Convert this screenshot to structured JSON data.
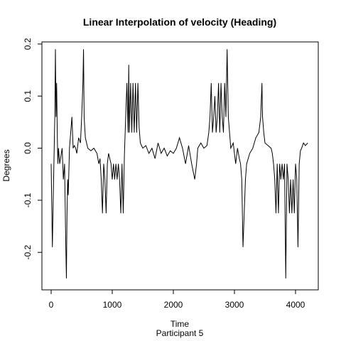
{
  "chart_data": {
    "type": "line",
    "title": "Linear Interpolation of velocity (Heading)",
    "x_label": "Time",
    "subtitle": "Participant  5",
    "y_label": "Degrees",
    "xlim": [
      -151,
      4372
    ],
    "ylim": [
      -0.272,
      0.204
    ],
    "xticks": [
      0,
      1000,
      2000,
      3000,
      4000
    ],
    "yticks": [
      -0.2,
      -0.1,
      {
        "value": 0,
        "label": "0.0"
      },
      0.1,
      0.2
    ],
    "x": [
      0,
      20,
      30,
      50,
      60,
      70,
      80,
      90,
      100,
      110,
      120,
      140,
      160,
      180,
      200,
      220,
      240,
      250,
      260,
      270,
      280,
      300,
      320,
      340,
      360,
      380,
      400,
      420,
      450,
      480,
      500,
      520,
      530,
      540,
      560,
      580,
      600,
      650,
      700,
      750,
      780,
      800,
      820,
      840,
      860,
      880,
      900,
      920,
      940,
      960,
      980,
      1000,
      1020,
      1040,
      1060,
      1080,
      1100,
      1120,
      1140,
      1160,
      1180,
      1200,
      1220,
      1240,
      1260,
      1270,
      1280,
      1300,
      1320,
      1340,
      1360,
      1380,
      1400,
      1420,
      1440,
      1460,
      1500,
      1550,
      1600,
      1650,
      1700,
      1750,
      1800,
      1850,
      1900,
      1950,
      2000,
      2050,
      2100,
      2150,
      2200,
      2250,
      2300,
      2350,
      2380,
      2400,
      2450,
      2500,
      2550,
      2580,
      2600,
      2620,
      2640,
      2660,
      2680,
      2700,
      2720,
      2740,
      2760,
      2780,
      2800,
      2820,
      2840,
      2860,
      2880,
      2900,
      2920,
      2940,
      2980,
      3000,
      3020,
      3050,
      3080,
      3100,
      3120,
      3140,
      3160,
      3180,
      3200,
      3250,
      3300,
      3350,
      3400,
      3430,
      3450,
      3460,
      3480,
      3500,
      3550,
      3600,
      3620,
      3640,
      3660,
      3680,
      3700,
      3720,
      3740,
      3760,
      3780,
      3800,
      3820,
      3840,
      3860,
      3880,
      3900,
      3920,
      3940,
      3960,
      3980,
      4000,
      4020,
      4040,
      4060,
      4080,
      4100,
      4130,
      4160,
      4200
    ],
    "series": [
      {
        "color": "#000000",
        "values": [
          -0.03,
          -0.19,
          -0.125,
          0.0,
          0.06,
          0.19,
          0.06,
          0.125,
          0.03,
          -0.03,
          0.0,
          -0.03,
          -0.015,
          0.0,
          -0.06,
          -0.03,
          -0.19,
          -0.25,
          -0.125,
          -0.06,
          -0.09,
          0.0,
          0.03,
          0.06,
          0.0,
          0.005,
          0.0,
          -0.01,
          0.02,
          0.01,
          0.06,
          0.125,
          0.19,
          0.06,
          0.02,
          0.01,
          0.0,
          -0.005,
          0.0,
          -0.01,
          -0.03,
          -0.02,
          -0.06,
          -0.125,
          -0.03,
          -0.06,
          -0.125,
          -0.03,
          -0.01,
          -0.02,
          -0.03,
          -0.06,
          -0.03,
          -0.06,
          -0.03,
          -0.06,
          -0.03,
          -0.06,
          -0.125,
          -0.03,
          -0.125,
          -0.01,
          0.06,
          0.125,
          0.03,
          0.16,
          0.03,
          0.125,
          0.03,
          0.125,
          0.03,
          0.125,
          0.03,
          0.125,
          0.04,
          0.01,
          0.0,
          0.005,
          -0.01,
          0.0,
          -0.02,
          0.01,
          -0.01,
          0.0,
          -0.015,
          -0.005,
          -0.01,
          0.0,
          0.02,
          0.0,
          -0.03,
          0.005,
          -0.03,
          -0.06,
          -0.03,
          0.0,
          0.01,
          0.0,
          0.005,
          0.03,
          0.06,
          0.125,
          0.03,
          0.06,
          0.1,
          0.03,
          0.06,
          0.125,
          0.03,
          0.125,
          0.06,
          0.03,
          0.125,
          0.06,
          0.19,
          0.06,
          0.03,
          0.0,
          0.01,
          -0.01,
          -0.03,
          0.0,
          -0.02,
          -0.03,
          -0.06,
          -0.19,
          -0.125,
          -0.06,
          -0.03,
          -0.01,
          0.0,
          0.02,
          0.03,
          0.06,
          0.125,
          0.06,
          0.03,
          0.01,
          0.005,
          0.0,
          -0.01,
          -0.03,
          -0.06,
          -0.125,
          -0.03,
          -0.125,
          -0.03,
          -0.06,
          -0.03,
          -0.06,
          -0.03,
          -0.25,
          -0.03,
          -0.06,
          -0.125,
          -0.06,
          -0.125,
          -0.06,
          -0.125,
          -0.03,
          -0.06,
          -0.19,
          -0.03,
          -0.005,
          0.0,
          0.01,
          0.005,
          0.01
        ]
      }
    ]
  }
}
